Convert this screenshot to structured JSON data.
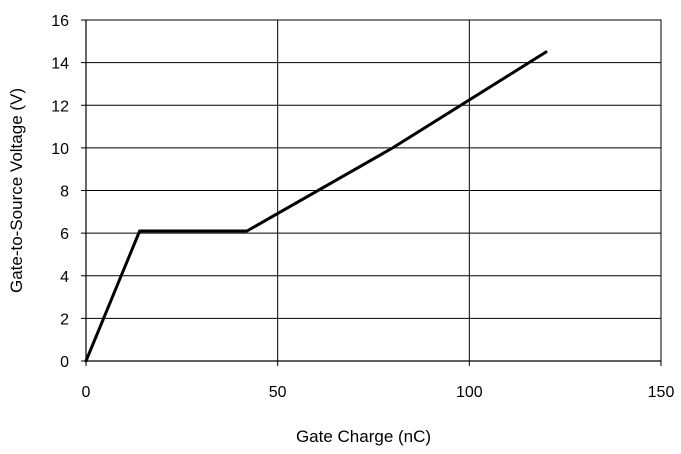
{
  "chart_data": {
    "type": "line",
    "title": "",
    "xlabel": "Gate Charge (nC)",
    "ylabel": "Gate-to-Source Voltage (V)",
    "xlim": [
      0,
      150
    ],
    "ylim": [
      0,
      16
    ],
    "xticks": [
      0,
      50,
      100,
      150
    ],
    "yticks": [
      0,
      2,
      4,
      6,
      8,
      10,
      12,
      14,
      16
    ],
    "grid": true,
    "legend": "none",
    "series": [
      {
        "color": "#000000",
        "x": [
          0,
          14,
          42,
          80,
          120
        ],
        "y": [
          0,
          6.1,
          6.1,
          10,
          14.5
        ]
      }
    ]
  }
}
